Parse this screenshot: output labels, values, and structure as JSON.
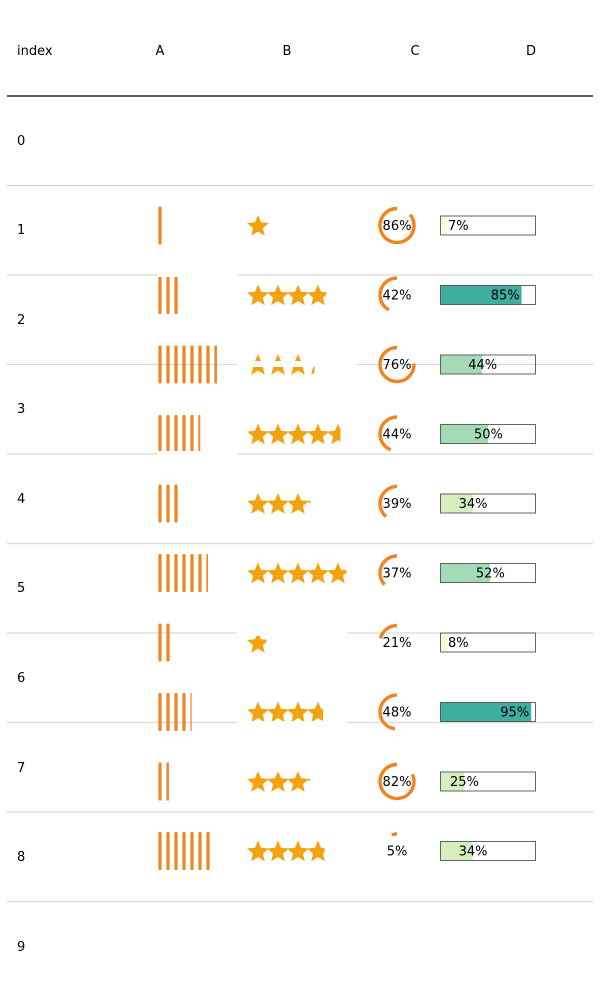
{
  "chart_data": {
    "type": "table",
    "columns": [
      "index",
      "A",
      "B",
      "C",
      "D"
    ],
    "index_labels": [
      "0",
      "1",
      "2",
      "3",
      "4",
      "5",
      "6",
      "7",
      "8",
      "9"
    ],
    "rows": [
      {
        "A": 1,
        "B": 1.1,
        "C": 86,
        "D": 7,
        "D_label": "7%"
      },
      {
        "A": 3,
        "B": 4.0,
        "C": 42,
        "D": 85,
        "D_label": "85%"
      },
      {
        "A": 7.6,
        "B": 3.4,
        "C": 76,
        "D": 44,
        "D_label": "44%"
      },
      {
        "A": 5.4,
        "B": 4.7,
        "C": 44,
        "D": 50,
        "D_label": "50%"
      },
      {
        "A": 3,
        "B": 3.2,
        "C": 39,
        "D": 34,
        "D_label": "34%"
      },
      {
        "A": 6.3,
        "B": 5.0,
        "C": 37,
        "D": 52,
        "D_label": "52%"
      },
      {
        "A": 2,
        "B": 1.0,
        "C": 21,
        "D": 8,
        "D_label": "8%"
      },
      {
        "A": 4.2,
        "B": 4.4,
        "C": 48,
        "D": 95,
        "D_label": "95%"
      },
      {
        "A": 1.6,
        "B": 3.2,
        "C": 82,
        "D": 25,
        "D_label": "25%"
      },
      {
        "A": 7,
        "B": 3.9,
        "C": 5,
        "D": 34,
        "D_label": "34%"
      }
    ],
    "A_max": 10,
    "B_max": 5,
    "C_max": 100,
    "D_max": 100,
    "colors": {
      "bars": "#f0841e",
      "stars": "#f2a30f",
      "ring": "#f0841e",
      "grid": "#d9d9d9",
      "header_line": "#000000",
      "D_scale": [
        "#f7fcd8",
        "#d6efbf",
        "#a3dbb6",
        "#6cc4a4",
        "#3fae9f"
      ]
    }
  }
}
